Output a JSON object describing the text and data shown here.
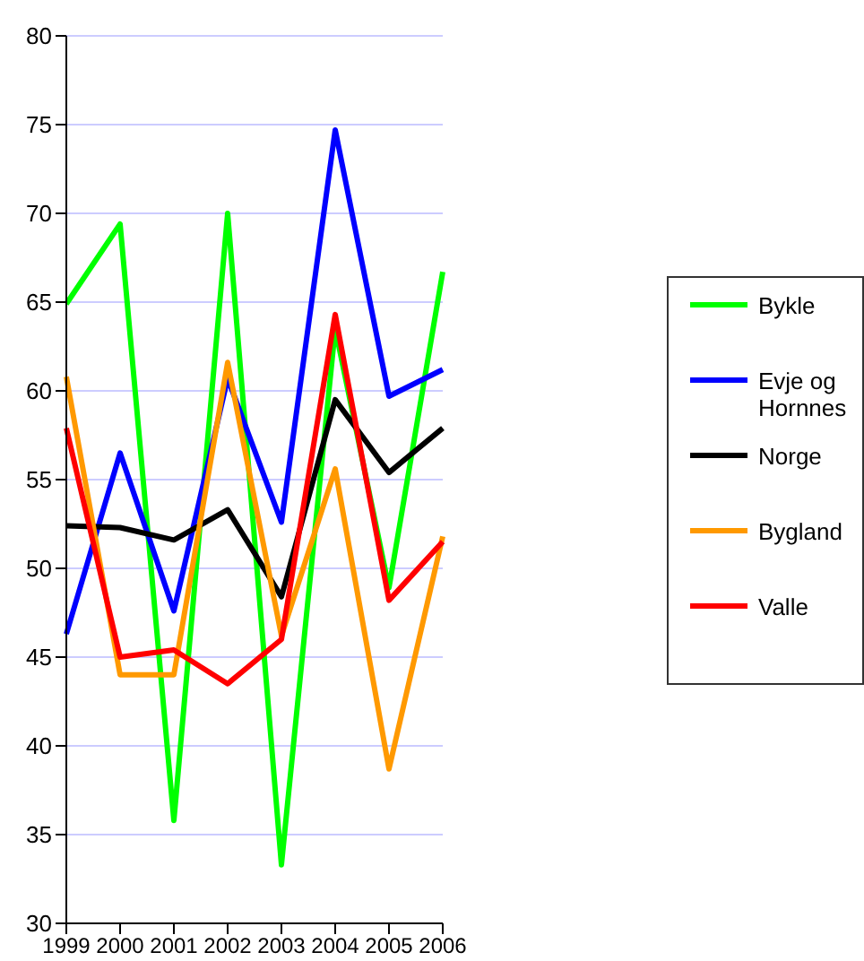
{
  "chart_data": {
    "type": "line",
    "categories": [
      "1999",
      "2000",
      "2001",
      "2002",
      "2003",
      "2004",
      "2005",
      "2006"
    ],
    "series": [
      {
        "name": "Bykle",
        "color": "#00ff00",
        "values": [
          64.9,
          69.4,
          35.8,
          70.0,
          33.3,
          63.5,
          48.9,
          66.7
        ]
      },
      {
        "name": "Evje og Hornnes",
        "color": "#0000ff",
        "values": [
          46.3,
          56.5,
          47.6,
          60.7,
          52.6,
          74.7,
          59.7,
          61.2
        ]
      },
      {
        "name": "Norge",
        "color": "#000000",
        "values": [
          52.4,
          52.3,
          51.6,
          53.3,
          48.4,
          59.5,
          55.4,
          57.9
        ]
      },
      {
        "name": "Bygland",
        "color": "#ff9900",
        "values": [
          60.8,
          44.0,
          44.0,
          61.6,
          46.2,
          55.6,
          38.7,
          51.8
        ]
      },
      {
        "name": "Valle",
        "color": "#ff0000",
        "values": [
          57.9,
          45.0,
          45.4,
          43.5,
          46.0,
          64.3,
          48.2,
          51.5
        ]
      }
    ],
    "ylim": [
      30,
      80
    ],
    "yticks": [
      30,
      35,
      40,
      45,
      50,
      55,
      60,
      65,
      70,
      75,
      80
    ],
    "grid": "y",
    "legend": "right",
    "marker": "none",
    "line_style": "solid"
  }
}
